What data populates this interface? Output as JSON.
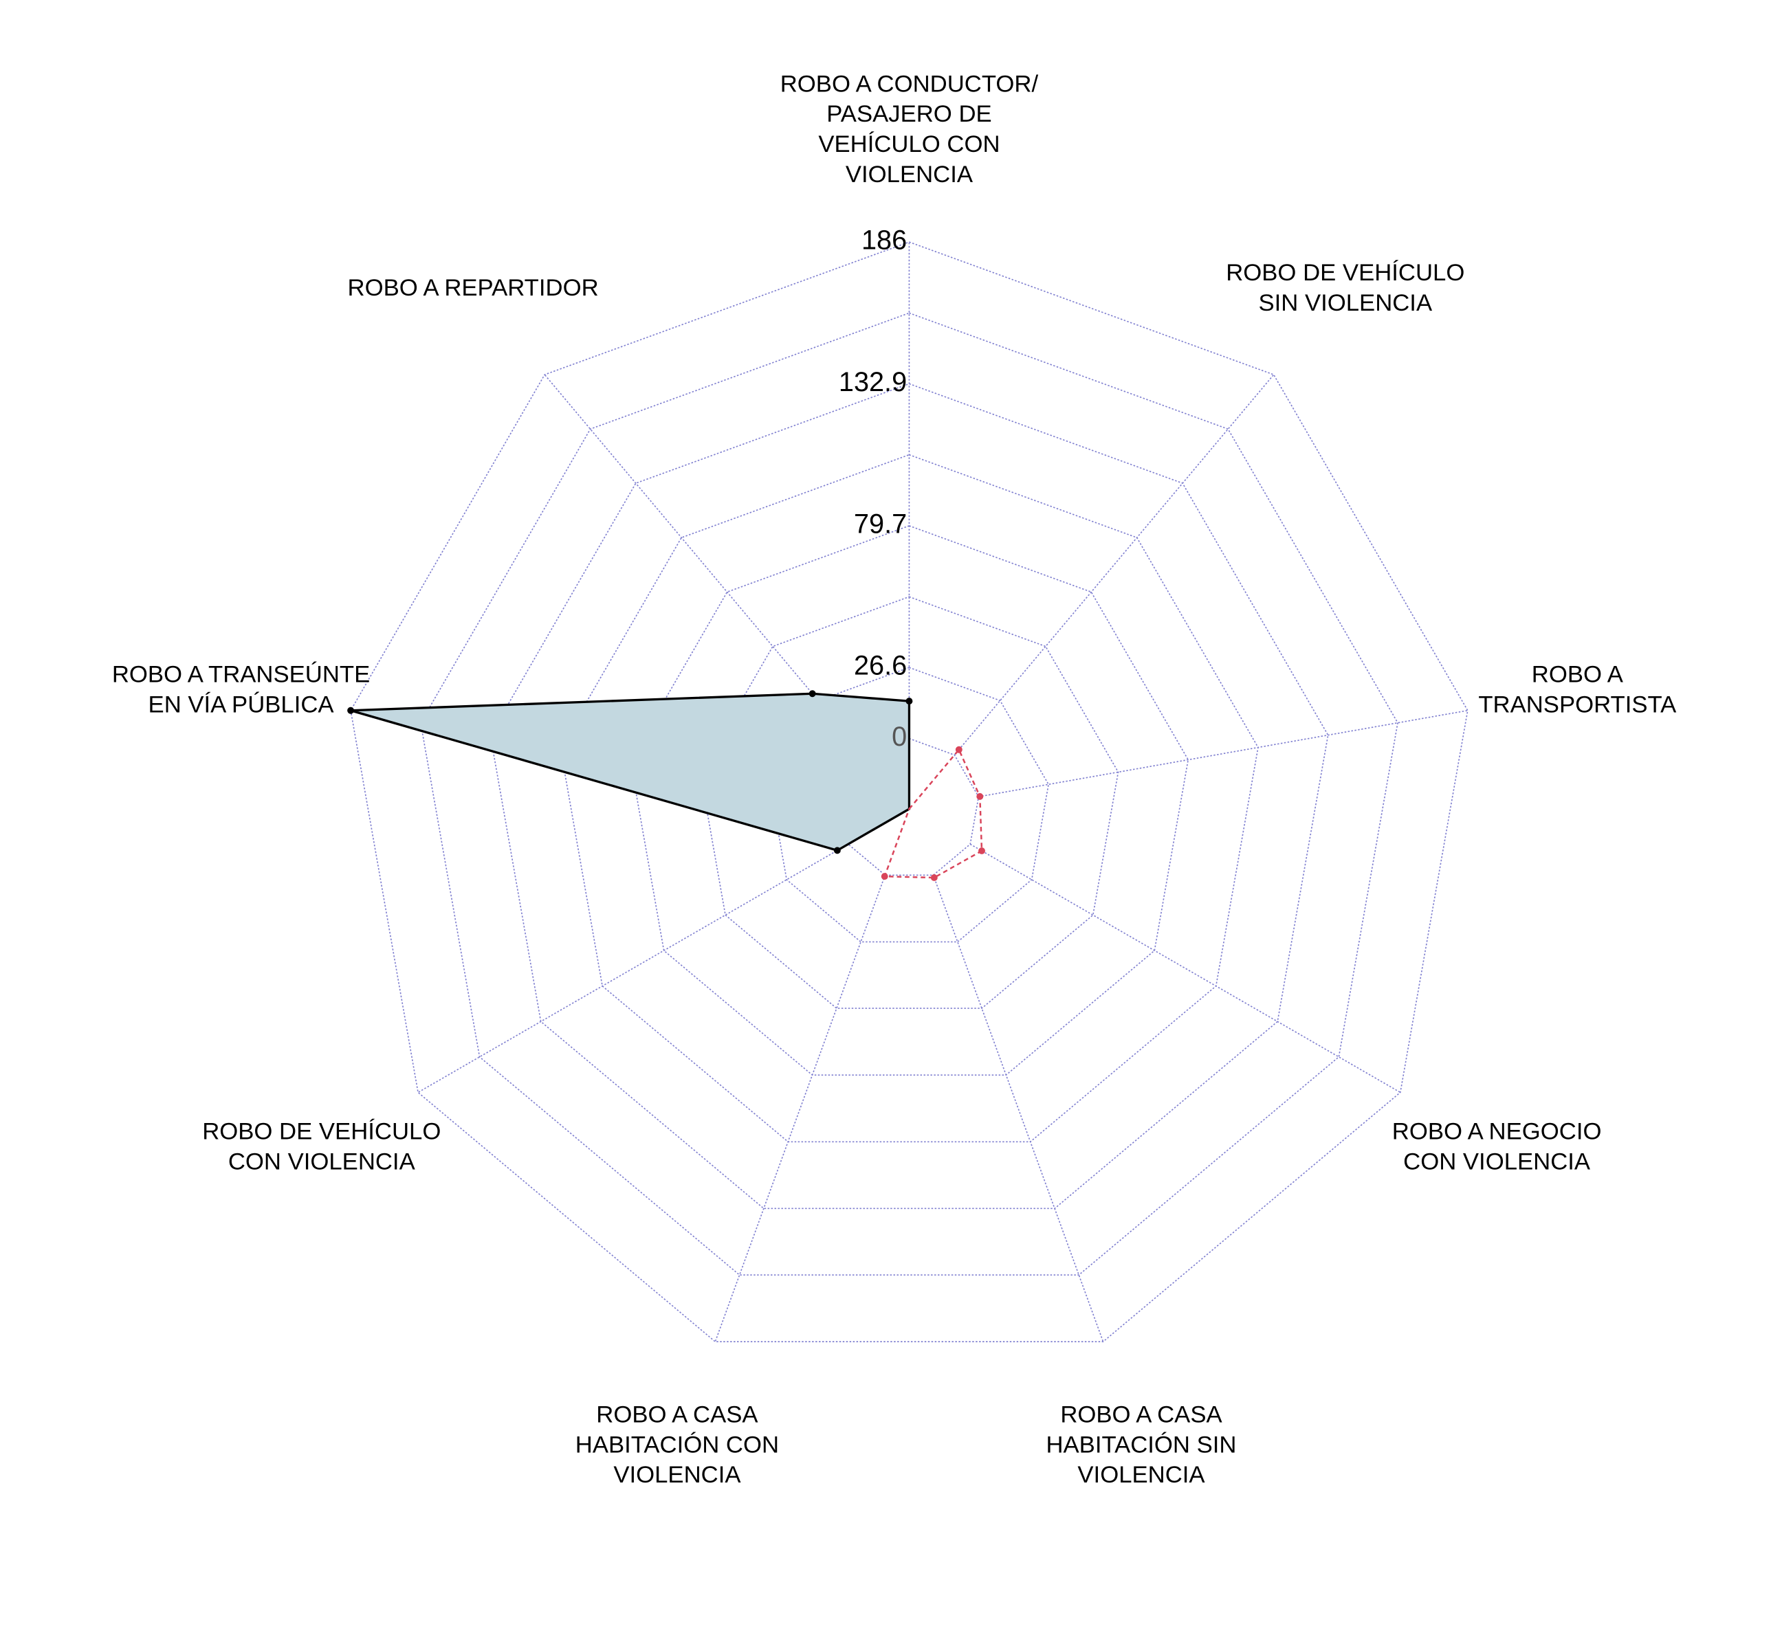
{
  "chart_data": {
    "type": "radar",
    "categories": [
      "ROBO A CONDUCTOR/\nPASAJERO DE\nVEHÍCULO CON\nVIOLENCIA",
      "ROBO DE VEHÍCULO\nSIN VIOLENCIA",
      "ROBO A\nTRANSPORTISTA",
      "ROBO A NEGOCIO\nCON VIOLENCIA",
      "ROBO A CASA\nHABITACIÓN SIN\nVIOLENCIA",
      "ROBO A CASA\nHABITACIÓN CON\nVIOLENCIA",
      "ROBO DE VEHÍCULO\nCON VIOLENCIA",
      "ROBO A TRANSEÚNTE\nEN VÍA PÚBLICA",
      "ROBO A REPARTIDOR"
    ],
    "series": [
      {
        "color": "#000000",
        "fill": "#c3d8e0",
        "dashed": false,
        "values": [
          14,
          null,
          null,
          null,
          null,
          null,
          4.7,
          186,
          30
        ]
      },
      {
        "color": "#d9445a",
        "fill": "none",
        "dashed": true,
        "values": [
          null,
          2.6,
          0.5,
          5,
          1,
          0.5,
          null,
          null,
          null
        ]
      }
    ],
    "ylim": [
      0,
      186
    ],
    "yticks": [
      0,
      26.6,
      79.7,
      132.9,
      186
    ],
    "minor_yticks": [
      53.1,
      106.3,
      159.4
    ],
    "grid_color": "#8080d0"
  }
}
